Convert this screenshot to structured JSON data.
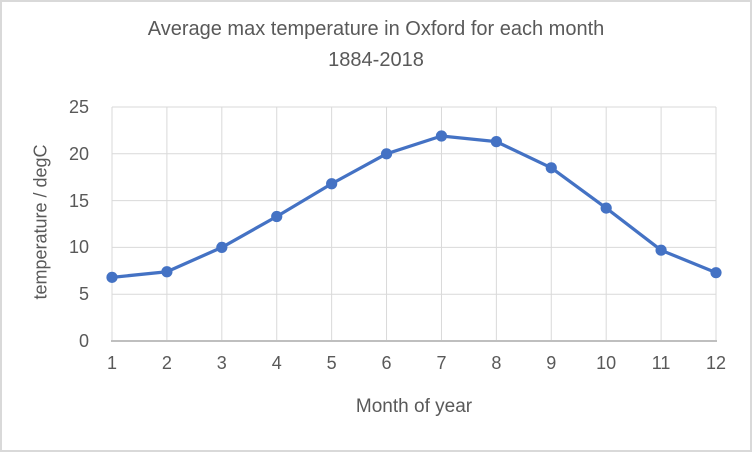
{
  "title": {
    "line1": "Average max temperature in Oxford for each month",
    "line2": "1884-2018"
  },
  "chart_data": {
    "type": "line",
    "title": "Average max temperature in Oxford for each month 1884-2018",
    "xlabel": "Month of year",
    "ylabel": "temperature / degC",
    "x": [
      1,
      2,
      3,
      4,
      5,
      6,
      7,
      8,
      9,
      10,
      11,
      12
    ],
    "categories": [
      "1",
      "2",
      "3",
      "4",
      "5",
      "6",
      "7",
      "8",
      "9",
      "10",
      "11",
      "12"
    ],
    "values": [
      6.8,
      7.4,
      10.0,
      13.3,
      16.8,
      20.0,
      21.9,
      21.3,
      18.5,
      14.2,
      9.7,
      7.3
    ],
    "xlim": [
      1,
      12
    ],
    "ylim": [
      0,
      25
    ],
    "y_ticks": [
      0,
      5,
      10,
      15,
      20,
      25
    ],
    "grid": true,
    "legend": false,
    "marker": "circle"
  },
  "colors": {
    "line": "#4472C4",
    "marker": "#4472C4",
    "grid": "#d9d9d9",
    "axis_line": "#bfbfbf",
    "text": "#595959",
    "background": "#ffffff",
    "border": "#d9d9d9"
  }
}
